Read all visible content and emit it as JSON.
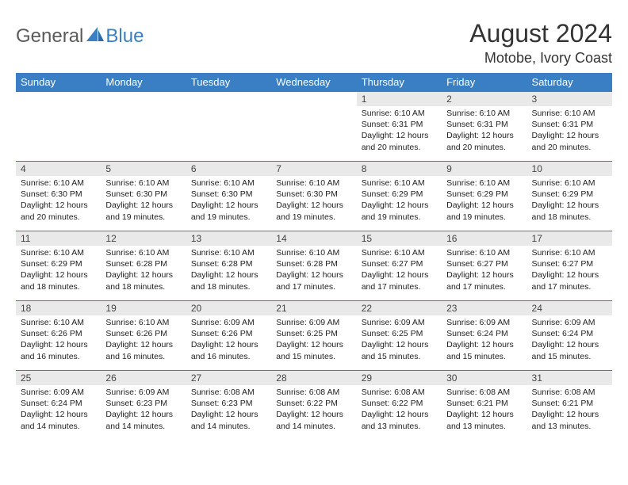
{
  "logo": {
    "general": "General",
    "blue": "Blue"
  },
  "header": {
    "month_title": "August 2024",
    "location": "Motobe, Ivory Coast"
  },
  "colors": {
    "header_bg": "#3a7fc4",
    "header_text": "#ffffff",
    "daynum_bg": "#e9e9e9",
    "row_border": "#3a7fc4"
  },
  "calendar": {
    "day_headers": [
      "Sunday",
      "Monday",
      "Tuesday",
      "Wednesday",
      "Thursday",
      "Friday",
      "Saturday"
    ],
    "first_weekday_index": 4,
    "days": [
      {
        "n": 1,
        "sunrise": "6:10 AM",
        "sunset": "6:31 PM",
        "daylight": "12 hours and 20 minutes."
      },
      {
        "n": 2,
        "sunrise": "6:10 AM",
        "sunset": "6:31 PM",
        "daylight": "12 hours and 20 minutes."
      },
      {
        "n": 3,
        "sunrise": "6:10 AM",
        "sunset": "6:31 PM",
        "daylight": "12 hours and 20 minutes."
      },
      {
        "n": 4,
        "sunrise": "6:10 AM",
        "sunset": "6:30 PM",
        "daylight": "12 hours and 20 minutes."
      },
      {
        "n": 5,
        "sunrise": "6:10 AM",
        "sunset": "6:30 PM",
        "daylight": "12 hours and 19 minutes."
      },
      {
        "n": 6,
        "sunrise": "6:10 AM",
        "sunset": "6:30 PM",
        "daylight": "12 hours and 19 minutes."
      },
      {
        "n": 7,
        "sunrise": "6:10 AM",
        "sunset": "6:30 PM",
        "daylight": "12 hours and 19 minutes."
      },
      {
        "n": 8,
        "sunrise": "6:10 AM",
        "sunset": "6:29 PM",
        "daylight": "12 hours and 19 minutes."
      },
      {
        "n": 9,
        "sunrise": "6:10 AM",
        "sunset": "6:29 PM",
        "daylight": "12 hours and 19 minutes."
      },
      {
        "n": 10,
        "sunrise": "6:10 AM",
        "sunset": "6:29 PM",
        "daylight": "12 hours and 18 minutes."
      },
      {
        "n": 11,
        "sunrise": "6:10 AM",
        "sunset": "6:29 PM",
        "daylight": "12 hours and 18 minutes."
      },
      {
        "n": 12,
        "sunrise": "6:10 AM",
        "sunset": "6:28 PM",
        "daylight": "12 hours and 18 minutes."
      },
      {
        "n": 13,
        "sunrise": "6:10 AM",
        "sunset": "6:28 PM",
        "daylight": "12 hours and 18 minutes."
      },
      {
        "n": 14,
        "sunrise": "6:10 AM",
        "sunset": "6:28 PM",
        "daylight": "12 hours and 17 minutes."
      },
      {
        "n": 15,
        "sunrise": "6:10 AM",
        "sunset": "6:27 PM",
        "daylight": "12 hours and 17 minutes."
      },
      {
        "n": 16,
        "sunrise": "6:10 AM",
        "sunset": "6:27 PM",
        "daylight": "12 hours and 17 minutes."
      },
      {
        "n": 17,
        "sunrise": "6:10 AM",
        "sunset": "6:27 PM",
        "daylight": "12 hours and 17 minutes."
      },
      {
        "n": 18,
        "sunrise": "6:10 AM",
        "sunset": "6:26 PM",
        "daylight": "12 hours and 16 minutes."
      },
      {
        "n": 19,
        "sunrise": "6:10 AM",
        "sunset": "6:26 PM",
        "daylight": "12 hours and 16 minutes."
      },
      {
        "n": 20,
        "sunrise": "6:09 AM",
        "sunset": "6:26 PM",
        "daylight": "12 hours and 16 minutes."
      },
      {
        "n": 21,
        "sunrise": "6:09 AM",
        "sunset": "6:25 PM",
        "daylight": "12 hours and 15 minutes."
      },
      {
        "n": 22,
        "sunrise": "6:09 AM",
        "sunset": "6:25 PM",
        "daylight": "12 hours and 15 minutes."
      },
      {
        "n": 23,
        "sunrise": "6:09 AM",
        "sunset": "6:24 PM",
        "daylight": "12 hours and 15 minutes."
      },
      {
        "n": 24,
        "sunrise": "6:09 AM",
        "sunset": "6:24 PM",
        "daylight": "12 hours and 15 minutes."
      },
      {
        "n": 25,
        "sunrise": "6:09 AM",
        "sunset": "6:24 PM",
        "daylight": "12 hours and 14 minutes."
      },
      {
        "n": 26,
        "sunrise": "6:09 AM",
        "sunset": "6:23 PM",
        "daylight": "12 hours and 14 minutes."
      },
      {
        "n": 27,
        "sunrise": "6:08 AM",
        "sunset": "6:23 PM",
        "daylight": "12 hours and 14 minutes."
      },
      {
        "n": 28,
        "sunrise": "6:08 AM",
        "sunset": "6:22 PM",
        "daylight": "12 hours and 14 minutes."
      },
      {
        "n": 29,
        "sunrise": "6:08 AM",
        "sunset": "6:22 PM",
        "daylight": "12 hours and 13 minutes."
      },
      {
        "n": 30,
        "sunrise": "6:08 AM",
        "sunset": "6:21 PM",
        "daylight": "12 hours and 13 minutes."
      },
      {
        "n": 31,
        "sunrise": "6:08 AM",
        "sunset": "6:21 PM",
        "daylight": "12 hours and 13 minutes."
      }
    ],
    "labels": {
      "sunrise_prefix": "Sunrise: ",
      "sunset_prefix": "Sunset: ",
      "daylight_prefix": "Daylight: "
    }
  }
}
